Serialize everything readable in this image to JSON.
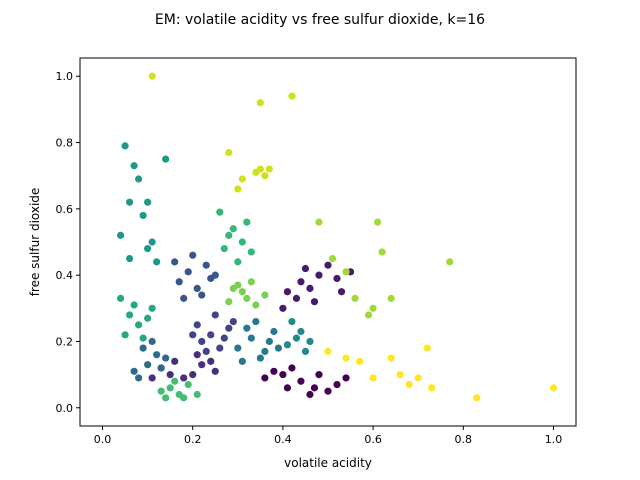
{
  "chart_data": {
    "type": "scatter",
    "title": "EM: volatile acidity vs free sulfur dioxide, k=16",
    "xlabel": "volatile acidity",
    "ylabel": "free sulfur dioxide",
    "xlim": [
      -0.05,
      1.05
    ],
    "ylim": [
      -0.055,
      1.055
    ],
    "xticks": [
      0.0,
      0.2,
      0.4,
      0.6,
      0.8,
      1.0
    ],
    "xtick_labels": [
      "0.0",
      "0.2",
      "0.4",
      "0.6",
      "0.8",
      "1.0"
    ],
    "yticks": [
      0.0,
      0.2,
      0.4,
      0.6,
      0.8,
      1.0
    ],
    "ytick_labels": [
      "0.0",
      "0.2",
      "0.4",
      "0.6",
      "0.8",
      "1.0"
    ],
    "grid": false,
    "legend": "none",
    "colormap": "viridis",
    "series": [
      {
        "color": "#440154",
        "points": [
          [
            0.36,
            0.09
          ],
          [
            0.4,
            0.1
          ],
          [
            0.44,
            0.08
          ],
          [
            0.47,
            0.06
          ],
          [
            0.5,
            0.05
          ],
          [
            0.42,
            0.12
          ],
          [
            0.38,
            0.11
          ],
          [
            0.48,
            0.1
          ],
          [
            0.52,
            0.07
          ],
          [
            0.46,
            0.04
          ],
          [
            0.41,
            0.06
          ],
          [
            0.54,
            0.09
          ]
        ]
      },
      {
        "color": "#481a6c",
        "points": [
          [
            0.4,
            0.3
          ],
          [
            0.43,
            0.33
          ],
          [
            0.44,
            0.38
          ],
          [
            0.46,
            0.36
          ],
          [
            0.48,
            0.4
          ],
          [
            0.5,
            0.43
          ],
          [
            0.52,
            0.39
          ],
          [
            0.55,
            0.41
          ],
          [
            0.47,
            0.32
          ],
          [
            0.41,
            0.35
          ],
          [
            0.53,
            0.35
          ],
          [
            0.45,
            0.42
          ]
        ]
      },
      {
        "color": "#472f7d",
        "points": [
          [
            0.13,
            0.12
          ],
          [
            0.16,
            0.14
          ],
          [
            0.2,
            0.1
          ],
          [
            0.22,
            0.13
          ],
          [
            0.18,
            0.09
          ],
          [
            0.25,
            0.11
          ],
          [
            0.15,
            0.1
          ],
          [
            0.21,
            0.16
          ],
          [
            0.11,
            0.09
          ],
          [
            0.24,
            0.14
          ]
        ]
      },
      {
        "color": "#414487",
        "points": [
          [
            0.22,
            0.2
          ],
          [
            0.24,
            0.22
          ],
          [
            0.26,
            0.18
          ],
          [
            0.28,
            0.24
          ],
          [
            0.25,
            0.28
          ],
          [
            0.21,
            0.25
          ],
          [
            0.27,
            0.21
          ],
          [
            0.23,
            0.17
          ],
          [
            0.29,
            0.26
          ],
          [
            0.2,
            0.22
          ]
        ]
      },
      {
        "color": "#39568c",
        "points": [
          [
            0.17,
            0.38
          ],
          [
            0.19,
            0.41
          ],
          [
            0.21,
            0.36
          ],
          [
            0.23,
            0.43
          ],
          [
            0.2,
            0.46
          ],
          [
            0.24,
            0.39
          ],
          [
            0.18,
            0.33
          ],
          [
            0.22,
            0.34
          ],
          [
            0.16,
            0.44
          ],
          [
            0.25,
            0.4
          ]
        ]
      },
      {
        "color": "#31688e",
        "points": [
          [
            0.07,
            0.11
          ],
          [
            0.1,
            0.13
          ],
          [
            0.12,
            0.16
          ],
          [
            0.09,
            0.18
          ],
          [
            0.13,
            0.12
          ],
          [
            0.08,
            0.09
          ],
          [
            0.11,
            0.2
          ],
          [
            0.14,
            0.15
          ]
        ]
      },
      {
        "color": "#2a788e",
        "points": [
          [
            0.3,
            0.18
          ],
          [
            0.33,
            0.21
          ],
          [
            0.36,
            0.17
          ],
          [
            0.38,
            0.23
          ],
          [
            0.34,
            0.26
          ],
          [
            0.31,
            0.14
          ],
          [
            0.37,
            0.2
          ],
          [
            0.35,
            0.15
          ],
          [
            0.32,
            0.24
          ],
          [
            0.39,
            0.18
          ]
        ]
      },
      {
        "color": "#23888e",
        "points": [
          [
            0.41,
            0.19
          ],
          [
            0.44,
            0.23
          ],
          [
            0.46,
            0.2
          ],
          [
            0.42,
            0.26
          ],
          [
            0.45,
            0.17
          ],
          [
            0.43,
            0.21
          ]
        ]
      },
      {
        "color": "#1f988b",
        "points": [
          [
            0.05,
            0.79
          ],
          [
            0.07,
            0.73
          ],
          [
            0.06,
            0.62
          ],
          [
            0.09,
            0.58
          ],
          [
            0.1,
            0.62
          ],
          [
            0.11,
            0.5
          ],
          [
            0.04,
            0.52
          ],
          [
            0.06,
            0.45
          ],
          [
            0.08,
            0.69
          ],
          [
            0.14,
            0.75
          ],
          [
            0.12,
            0.44
          ],
          [
            0.1,
            0.48
          ]
        ]
      },
      {
        "color": "#22a884",
        "points": [
          [
            0.04,
            0.33
          ],
          [
            0.06,
            0.28
          ],
          [
            0.08,
            0.25
          ],
          [
            0.05,
            0.22
          ],
          [
            0.07,
            0.31
          ],
          [
            0.1,
            0.27
          ],
          [
            0.09,
            0.21
          ],
          [
            0.11,
            0.3
          ]
        ]
      },
      {
        "color": "#35b779",
        "points": [
          [
            0.26,
            0.59
          ],
          [
            0.29,
            0.54
          ],
          [
            0.31,
            0.5
          ],
          [
            0.33,
            0.47
          ],
          [
            0.3,
            0.44
          ],
          [
            0.28,
            0.52
          ],
          [
            0.32,
            0.56
          ],
          [
            0.27,
            0.48
          ]
        ]
      },
      {
        "color": "#44bf70",
        "points": [
          [
            0.15,
            0.06
          ],
          [
            0.17,
            0.04
          ],
          [
            0.19,
            0.07
          ],
          [
            0.13,
            0.05
          ],
          [
            0.21,
            0.04
          ],
          [
            0.16,
            0.08
          ],
          [
            0.18,
            0.03
          ],
          [
            0.14,
            0.03
          ]
        ]
      },
      {
        "color": "#7ad151",
        "points": [
          [
            0.28,
            0.32
          ],
          [
            0.31,
            0.35
          ],
          [
            0.33,
            0.38
          ],
          [
            0.36,
            0.34
          ],
          [
            0.34,
            0.31
          ],
          [
            0.3,
            0.37
          ],
          [
            0.32,
            0.33
          ],
          [
            0.29,
            0.36
          ]
        ]
      },
      {
        "color": "#a0da39",
        "points": [
          [
            0.48,
            0.56
          ],
          [
            0.51,
            0.45
          ],
          [
            0.54,
            0.41
          ],
          [
            0.56,
            0.33
          ],
          [
            0.59,
            0.28
          ],
          [
            0.61,
            0.56
          ],
          [
            0.62,
            0.47
          ],
          [
            0.64,
            0.33
          ],
          [
            0.77,
            0.44
          ],
          [
            0.6,
            0.3
          ]
        ]
      },
      {
        "color": "#d0e11c",
        "points": [
          [
            0.11,
            1.0
          ],
          [
            0.35,
            0.92
          ],
          [
            0.42,
            0.94
          ],
          [
            0.28,
            0.77
          ],
          [
            0.35,
            0.72
          ],
          [
            0.36,
            0.7
          ],
          [
            0.31,
            0.69
          ],
          [
            0.34,
            0.71
          ],
          [
            0.3,
            0.66
          ],
          [
            0.37,
            0.72
          ]
        ]
      },
      {
        "color": "#fde725",
        "points": [
          [
            0.5,
            0.17
          ],
          [
            0.54,
            0.15
          ],
          [
            0.57,
            0.14
          ],
          [
            0.6,
            0.09
          ],
          [
            0.64,
            0.15
          ],
          [
            0.66,
            0.1
          ],
          [
            0.68,
            0.07
          ],
          [
            0.72,
            0.18
          ],
          [
            0.73,
            0.06
          ],
          [
            0.83,
            0.03
          ],
          [
            1.0,
            0.06
          ],
          [
            0.7,
            0.09
          ]
        ]
      }
    ]
  }
}
